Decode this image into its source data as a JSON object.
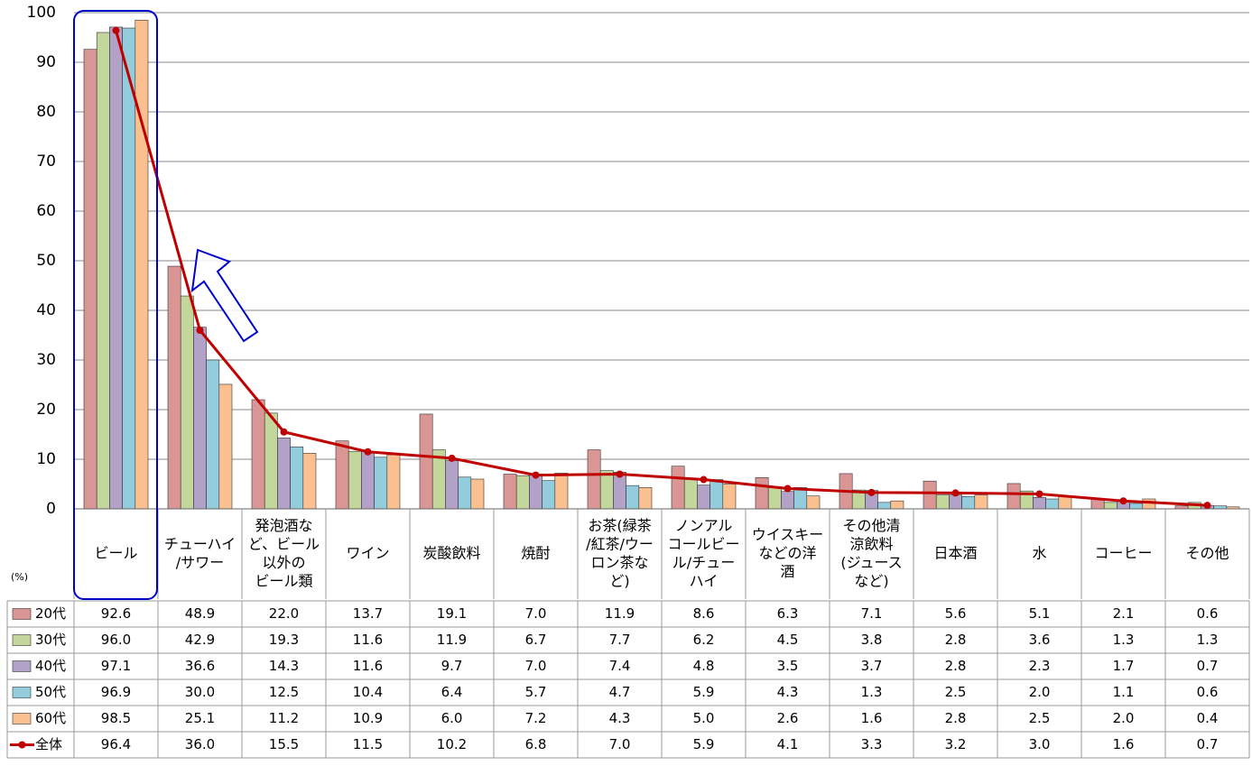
{
  "chart_data": {
    "type": "bar",
    "y_unit_label": "(%)",
    "ylim": [
      0,
      100
    ],
    "yticks": [
      0,
      10,
      20,
      30,
      40,
      50,
      60,
      70,
      80,
      90,
      100
    ],
    "grid": true,
    "categories": [
      [
        "ビール"
      ],
      [
        "チューハイ",
        "/サワー"
      ],
      [
        "発泡酒な",
        "ど、ビール",
        "以外の",
        "ビール類"
      ],
      [
        "ワイン"
      ],
      [
        "炭酸飲料"
      ],
      [
        "焼酎"
      ],
      [
        "お茶(緑茶",
        "/紅茶/ウー",
        "ロン茶な",
        "ど)"
      ],
      [
        "ノンアル",
        "コールビー",
        "ル/チュー",
        "ハイ"
      ],
      [
        "ウイスキー",
        "などの洋",
        "酒"
      ],
      [
        "その他清",
        "涼飲料",
        "(ジュース",
        "など)"
      ],
      [
        "日本酒"
      ],
      [
        "水"
      ],
      [
        "コーヒー"
      ],
      [
        "その他"
      ]
    ],
    "series": [
      {
        "name": "20代",
        "type": "bar",
        "color": "#D99694",
        "values": [
          92.6,
          48.9,
          22.0,
          13.7,
          19.1,
          7.0,
          11.9,
          8.6,
          6.3,
          7.1,
          5.6,
          5.1,
          2.1,
          0.6
        ]
      },
      {
        "name": "30代",
        "type": "bar",
        "color": "#C3D69B",
        "values": [
          96.0,
          42.9,
          19.3,
          11.6,
          11.9,
          6.7,
          7.7,
          6.2,
          4.5,
          3.8,
          2.8,
          3.6,
          1.3,
          1.3
        ]
      },
      {
        "name": "40代",
        "type": "bar",
        "color": "#B3A2C7",
        "values": [
          97.1,
          36.6,
          14.3,
          11.6,
          9.7,
          7.0,
          7.4,
          4.8,
          3.5,
          3.7,
          2.8,
          2.3,
          1.7,
          0.7
        ]
      },
      {
        "name": "50代",
        "type": "bar",
        "color": "#93CDDD",
        "values": [
          96.9,
          30.0,
          12.5,
          10.4,
          6.4,
          5.7,
          4.7,
          5.9,
          4.3,
          1.3,
          2.5,
          2.0,
          1.1,
          0.6
        ]
      },
      {
        "name": "60代",
        "type": "bar",
        "color": "#FAC090",
        "values": [
          98.5,
          25.1,
          11.2,
          10.9,
          6.0,
          7.2,
          4.3,
          5.0,
          2.6,
          1.6,
          2.8,
          2.5,
          2.0,
          0.4
        ]
      },
      {
        "name": "全体",
        "type": "line",
        "color": "#C00000",
        "values": [
          96.4,
          36.0,
          15.5,
          11.5,
          10.2,
          6.8,
          7.0,
          5.9,
          4.1,
          3.3,
          3.2,
          3.0,
          1.6,
          0.7
        ]
      }
    ],
    "annotations": [
      {
        "type": "highlight-box",
        "category": "ビール",
        "color": "#0000CC"
      },
      {
        "type": "arrow",
        "direction": "up-left",
        "color": "#0000CC"
      }
    ]
  }
}
